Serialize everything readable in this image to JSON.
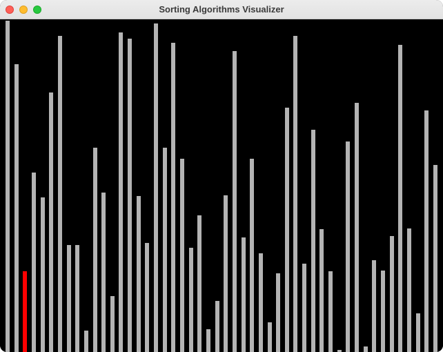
{
  "window": {
    "title": "Sorting Algorithms Visualizer"
  },
  "colors": {
    "bar_default": "#b4b4b4",
    "bar_active": "#ff0000",
    "background": "#000000"
  },
  "chart_data": {
    "type": "bar",
    "active_index": 2,
    "values": [
      480,
      417,
      117,
      260,
      224,
      376,
      458,
      155,
      155,
      31,
      296,
      231,
      81,
      463,
      454,
      226,
      158,
      476,
      296,
      448,
      280,
      151,
      198,
      33,
      74,
      227,
      436,
      166,
      280,
      143,
      43,
      114,
      354,
      458,
      128,
      322,
      178,
      117,
      3,
      305,
      361,
      8,
      133,
      118,
      168,
      445,
      179,
      56,
      350,
      271
    ]
  }
}
